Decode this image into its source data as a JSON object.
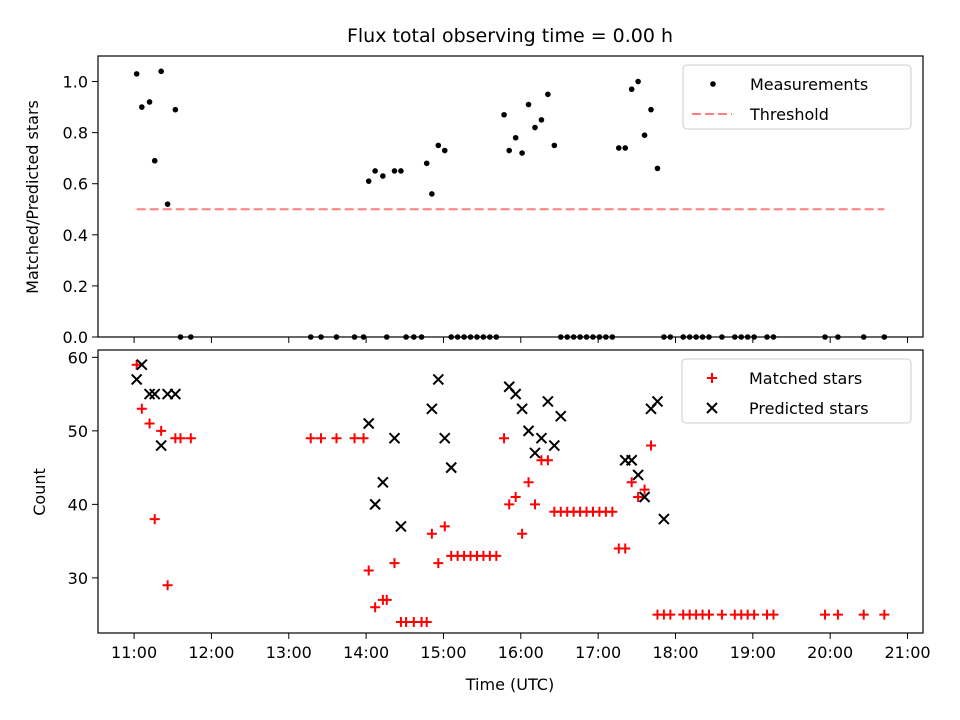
{
  "chart_data": [
    {
      "type": "scatter",
      "title": "Flux total observing time = 0.00 h",
      "xlabel": "",
      "ylabel": "Matched/Predicted stars",
      "xlim": [
        "10:32",
        "21:12"
      ],
      "ylim": [
        0.0,
        1.1
      ],
      "yticks": [
        0.0,
        0.2,
        0.4,
        0.6,
        0.8,
        1.0
      ],
      "ytick_labels": [
        "0.0",
        "0.2",
        "0.4",
        "0.6",
        "0.8",
        "1.0"
      ],
      "legend_position": "top-right",
      "series": [
        {
          "name": "Measurements",
          "marker": "dot",
          "color": "#000000",
          "points": [
            [
              "11:02",
              1.03
            ],
            [
              "11:06",
              0.9
            ],
            [
              "11:12",
              0.92
            ],
            [
              "11:16",
              0.69
            ],
            [
              "11:21",
              1.04
            ],
            [
              "11:26",
              0.52
            ],
            [
              "11:32",
              0.89
            ],
            [
              "11:36",
              0.0
            ],
            [
              "11:44",
              0.0
            ],
            [
              "13:17",
              0.0
            ],
            [
              "13:25",
              0.0
            ],
            [
              "13:37",
              0.0
            ],
            [
              "13:51",
              0.0
            ],
            [
              "13:58",
              0.0
            ],
            [
              "14:02",
              0.61
            ],
            [
              "14:07",
              0.65
            ],
            [
              "14:13",
              0.63
            ],
            [
              "14:16",
              0.0
            ],
            [
              "14:22",
              0.65
            ],
            [
              "14:27",
              0.65
            ],
            [
              "14:31",
              0.0
            ],
            [
              "14:37",
              0.0
            ],
            [
              "14:43",
              0.0
            ],
            [
              "14:47",
              0.68
            ],
            [
              "14:51",
              0.56
            ],
            [
              "14:56",
              0.75
            ],
            [
              "15:01",
              0.73
            ],
            [
              "15:06",
              0.0
            ],
            [
              "15:11",
              0.0
            ],
            [
              "15:16",
              0.0
            ],
            [
              "15:21",
              0.0
            ],
            [
              "15:26",
              0.0
            ],
            [
              "15:31",
              0.0
            ],
            [
              "15:36",
              0.0
            ],
            [
              "15:41",
              0.0
            ],
            [
              "15:47",
              0.87
            ],
            [
              "15:51",
              0.73
            ],
            [
              "15:56",
              0.78
            ],
            [
              "16:01",
              0.72
            ],
            [
              "16:06",
              0.91
            ],
            [
              "16:11",
              0.82
            ],
            [
              "16:16",
              0.85
            ],
            [
              "16:21",
              0.95
            ],
            [
              "16:26",
              0.75
            ],
            [
              "16:31",
              0.0
            ],
            [
              "16:36",
              0.0
            ],
            [
              "16:41",
              0.0
            ],
            [
              "16:46",
              0.0
            ],
            [
              "16:51",
              0.0
            ],
            [
              "16:56",
              0.0
            ],
            [
              "17:01",
              0.0
            ],
            [
              "17:06",
              0.0
            ],
            [
              "17:11",
              0.0
            ],
            [
              "17:16",
              0.74
            ],
            [
              "17:21",
              0.74
            ],
            [
              "17:26",
              0.97
            ],
            [
              "17:31",
              1.0
            ],
            [
              "17:36",
              0.79
            ],
            [
              "17:41",
              0.89
            ],
            [
              "17:46",
              0.66
            ],
            [
              "17:51",
              0.0
            ],
            [
              "17:56",
              0.0
            ],
            [
              "18:06",
              0.0
            ],
            [
              "18:11",
              0.0
            ],
            [
              "18:16",
              0.0
            ],
            [
              "18:21",
              0.0
            ],
            [
              "18:26",
              0.0
            ],
            [
              "18:36",
              0.0
            ],
            [
              "18:46",
              0.0
            ],
            [
              "18:51",
              0.0
            ],
            [
              "18:56",
              0.0
            ],
            [
              "19:01",
              0.0
            ],
            [
              "19:11",
              0.0
            ],
            [
              "19:16",
              0.0
            ],
            [
              "19:56",
              0.0
            ],
            [
              "20:06",
              0.0
            ],
            [
              "20:26",
              0.0
            ],
            [
              "20:42",
              0.0
            ]
          ]
        },
        {
          "name": "Threshold",
          "line_style": "dashed",
          "color": "#ff7f7f",
          "points": [
            [
              "11:02",
              0.5
            ],
            [
              "20:42",
              0.5
            ]
          ]
        }
      ]
    },
    {
      "type": "scatter",
      "title": "",
      "xlabel": "Time (UTC)",
      "ylabel": "Count",
      "xlim": [
        "10:32",
        "21:12"
      ],
      "ylim": [
        22.5,
        61
      ],
      "yticks": [
        30,
        40,
        50,
        60
      ],
      "ytick_labels": [
        "30",
        "40",
        "50",
        "60"
      ],
      "xtick_labels": [
        "11:00",
        "12:00",
        "13:00",
        "14:00",
        "15:00",
        "16:00",
        "17:00",
        "18:00",
        "19:00",
        "20:00",
        "21:00"
      ],
      "legend_position": "top-right",
      "series": [
        {
          "name": "Matched stars",
          "marker": "plus",
          "color": "#ff0000",
          "points": [
            [
              "11:02",
              59
            ],
            [
              "11:06",
              53
            ],
            [
              "11:12",
              51
            ],
            [
              "11:16",
              38
            ],
            [
              "11:21",
              50
            ],
            [
              "11:26",
              29
            ],
            [
              "11:32",
              49
            ],
            [
              "11:36",
              49
            ],
            [
              "11:44",
              49
            ],
            [
              "13:17",
              49
            ],
            [
              "13:25",
              49
            ],
            [
              "13:37",
              49
            ],
            [
              "13:51",
              49
            ],
            [
              "13:58",
              49
            ],
            [
              "14:02",
              31
            ],
            [
              "14:07",
              26
            ],
            [
              "14:13",
              27
            ],
            [
              "14:16",
              27
            ],
            [
              "14:22",
              32
            ],
            [
              "14:27",
              24
            ],
            [
              "14:31",
              24
            ],
            [
              "14:37",
              24
            ],
            [
              "14:43",
              24
            ],
            [
              "14:47",
              24
            ],
            [
              "14:51",
              36
            ],
            [
              "14:56",
              32
            ],
            [
              "15:01",
              37
            ],
            [
              "15:06",
              33
            ],
            [
              "15:11",
              33
            ],
            [
              "15:16",
              33
            ],
            [
              "15:21",
              33
            ],
            [
              "15:26",
              33
            ],
            [
              "15:31",
              33
            ],
            [
              "15:36",
              33
            ],
            [
              "15:41",
              33
            ],
            [
              "15:47",
              49
            ],
            [
              "15:51",
              40
            ],
            [
              "15:56",
              41
            ],
            [
              "16:01",
              36
            ],
            [
              "16:06",
              43
            ],
            [
              "16:11",
              40
            ],
            [
              "16:16",
              46
            ],
            [
              "16:21",
              46
            ],
            [
              "16:26",
              39
            ],
            [
              "16:31",
              39
            ],
            [
              "16:36",
              39
            ],
            [
              "16:41",
              39
            ],
            [
              "16:46",
              39
            ],
            [
              "16:51",
              39
            ],
            [
              "16:56",
              39
            ],
            [
              "17:01",
              39
            ],
            [
              "17:06",
              39
            ],
            [
              "17:11",
              39
            ],
            [
              "17:16",
              34
            ],
            [
              "17:21",
              34
            ],
            [
              "17:26",
              43
            ],
            [
              "17:31",
              41
            ],
            [
              "17:36",
              42
            ],
            [
              "17:41",
              48
            ],
            [
              "17:46",
              25
            ],
            [
              "17:51",
              25
            ],
            [
              "17:56",
              25
            ],
            [
              "18:06",
              25
            ],
            [
              "18:11",
              25
            ],
            [
              "18:16",
              25
            ],
            [
              "18:21",
              25
            ],
            [
              "18:26",
              25
            ],
            [
              "18:36",
              25
            ],
            [
              "18:46",
              25
            ],
            [
              "18:51",
              25
            ],
            [
              "18:56",
              25
            ],
            [
              "19:01",
              25
            ],
            [
              "19:11",
              25
            ],
            [
              "19:16",
              25
            ],
            [
              "19:56",
              25
            ],
            [
              "20:06",
              25
            ],
            [
              "20:26",
              25
            ],
            [
              "20:42",
              25
            ]
          ]
        },
        {
          "name": "Predicted stars",
          "marker": "x",
          "color": "#000000",
          "points": [
            [
              "11:02",
              57
            ],
            [
              "11:06",
              59
            ],
            [
              "11:12",
              55
            ],
            [
              "11:16",
              55
            ],
            [
              "11:21",
              48
            ],
            [
              "11:26",
              55
            ],
            [
              "11:32",
              55
            ],
            [
              "14:02",
              51
            ],
            [
              "14:07",
              40
            ],
            [
              "14:13",
              43
            ],
            [
              "14:22",
              49
            ],
            [
              "14:27",
              37
            ],
            [
              "14:51",
              53
            ],
            [
              "14:56",
              57
            ],
            [
              "15:01",
              49
            ],
            [
              "15:06",
              45
            ],
            [
              "15:51",
              56
            ],
            [
              "15:56",
              55
            ],
            [
              "16:01",
              53
            ],
            [
              "16:06",
              50
            ],
            [
              "16:11",
              47
            ],
            [
              "16:16",
              49
            ],
            [
              "16:21",
              54
            ],
            [
              "16:26",
              48
            ],
            [
              "16:31",
              52
            ],
            [
              "17:21",
              46
            ],
            [
              "17:26",
              46
            ],
            [
              "17:31",
              44
            ],
            [
              "17:36",
              41
            ],
            [
              "17:41",
              53
            ],
            [
              "17:46",
              54
            ],
            [
              "17:51",
              38
            ]
          ]
        }
      ]
    }
  ]
}
